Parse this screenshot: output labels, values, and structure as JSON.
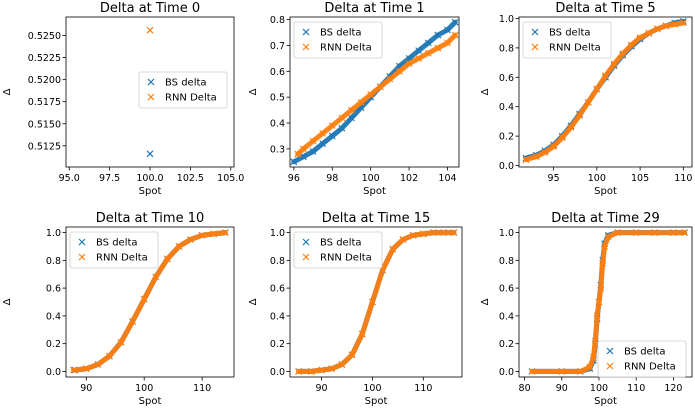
{
  "colors": {
    "bs": "#1f77b4",
    "rnn": "#ff7f0e"
  },
  "chart_data": [
    {
      "type": "scatter",
      "title": "Delta at Time 0",
      "xlabel": "Spot",
      "ylabel": "Δ",
      "xlim": [
        94.8,
        105.2
      ],
      "ylim": [
        0.5101,
        0.5271
      ],
      "xticks": [
        "95.0",
        "97.5",
        "100.0",
        "102.5",
        "105.0"
      ],
      "xtick_values": [
        95.0,
        97.5,
        100.0,
        102.5,
        105.0
      ],
      "yticks": [
        "0.5125",
        "0.5150",
        "0.5175",
        "0.5200",
        "0.5225",
        "0.5250"
      ],
      "ytick_values": [
        0.5125,
        0.515,
        0.5175,
        0.52,
        0.5225,
        0.525
      ],
      "legend": {
        "position": "center-right",
        "entries": [
          "BS delta",
          "RNN Delta"
        ]
      },
      "series": [
        {
          "name": "BS delta",
          "x": [
            100.0
          ],
          "y": [
            0.5116
          ]
        },
        {
          "name": "RNN Delta",
          "x": [
            100.0
          ],
          "y": [
            0.5256
          ]
        }
      ]
    },
    {
      "type": "scatter",
      "title": "Delta at Time 1",
      "xlabel": "Spot",
      "ylabel": "Δ",
      "xlim": [
        95.8,
        104.6
      ],
      "ylim": [
        0.23,
        0.81
      ],
      "xticks": [
        "96",
        "98",
        "100",
        "102",
        "104"
      ],
      "xtick_values": [
        96,
        98,
        100,
        102,
        104
      ],
      "yticks": [
        "0.3",
        "0.4",
        "0.5",
        "0.6",
        "0.7",
        "0.8"
      ],
      "ytick_values": [
        0.3,
        0.4,
        0.5,
        0.6,
        0.7,
        0.8
      ],
      "legend": {
        "position": "upper-left",
        "entries": [
          "BS delta",
          "RNN Delta"
        ]
      },
      "series": [
        {
          "name": "BS delta",
          "x": [
            96.0,
            96.5,
            97.0,
            97.5,
            98.0,
            98.5,
            99.0,
            99.5,
            100.0,
            100.5,
            101.0,
            101.5,
            102.0,
            102.5,
            103.0,
            103.5,
            104.0,
            104.4
          ],
          "y": [
            0.25,
            0.27,
            0.29,
            0.32,
            0.35,
            0.38,
            0.42,
            0.46,
            0.5,
            0.54,
            0.58,
            0.62,
            0.65,
            0.68,
            0.71,
            0.74,
            0.76,
            0.79
          ]
        },
        {
          "name": "RNN Delta",
          "x": [
            96.2,
            96.5,
            97.0,
            97.5,
            98.0,
            98.5,
            99.0,
            99.5,
            100.0,
            100.5,
            101.0,
            101.5,
            102.0,
            102.5,
            103.0,
            103.5,
            104.0,
            104.4
          ],
          "y": [
            0.28,
            0.3,
            0.33,
            0.36,
            0.39,
            0.42,
            0.45,
            0.48,
            0.51,
            0.54,
            0.57,
            0.6,
            0.63,
            0.65,
            0.67,
            0.69,
            0.71,
            0.74
          ]
        }
      ]
    },
    {
      "type": "scatter",
      "title": "Delta at Time 5",
      "xlabel": "Spot",
      "ylabel": "Δ",
      "xlim": [
        91.0,
        111.0
      ],
      "ylim": [
        -0.01,
        1.01
      ],
      "xticks": [
        "95",
        "100",
        "105",
        "110"
      ],
      "xtick_values": [
        95,
        100,
        105,
        110
      ],
      "yticks": [
        "0.0",
        "0.2",
        "0.4",
        "0.6",
        "0.8",
        "1.0"
      ],
      "ytick_values": [
        0.0,
        0.2,
        0.4,
        0.6,
        0.8,
        1.0
      ],
      "legend": {
        "position": "upper-left",
        "entries": [
          "BS delta",
          "RNN Delta"
        ]
      },
      "series": [
        {
          "name": "BS delta",
          "x": [
            91.8,
            93.0,
            94.0,
            95.0,
            96.0,
            97.0,
            98.0,
            99.0,
            100.0,
            101.0,
            102.0,
            103.0,
            104.0,
            105.0,
            106.0,
            107.0,
            108.0,
            109.0,
            110.0
          ],
          "y": [
            0.05,
            0.07,
            0.1,
            0.14,
            0.2,
            0.27,
            0.35,
            0.43,
            0.52,
            0.6,
            0.68,
            0.75,
            0.81,
            0.86,
            0.9,
            0.93,
            0.95,
            0.97,
            0.98
          ]
        },
        {
          "name": "RNN Delta",
          "x": [
            91.8,
            93.0,
            94.0,
            95.0,
            96.0,
            97.0,
            98.0,
            99.0,
            100.0,
            101.0,
            102.0,
            103.0,
            104.0,
            105.0,
            106.0,
            107.0,
            108.0,
            109.0,
            110.0
          ],
          "y": [
            0.04,
            0.06,
            0.09,
            0.13,
            0.19,
            0.26,
            0.34,
            0.43,
            0.52,
            0.61,
            0.69,
            0.76,
            0.82,
            0.87,
            0.9,
            0.93,
            0.95,
            0.96,
            0.97
          ]
        }
      ]
    },
    {
      "type": "scatter",
      "title": "Delta at Time 10",
      "xlabel": "Spot",
      "ylabel": "Δ",
      "xlim": [
        86.5,
        115.5
      ],
      "ylim": [
        -0.04,
        1.04
      ],
      "xticks": [
        "90",
        "100",
        "110"
      ],
      "xtick_values": [
        90,
        100,
        110
      ],
      "yticks": [
        "0.0",
        "0.2",
        "0.4",
        "0.6",
        "0.8",
        "1.0"
      ],
      "ytick_values": [
        0.0,
        0.2,
        0.4,
        0.6,
        0.8,
        1.0
      ],
      "legend": {
        "position": "upper-left",
        "entries": [
          "BS delta",
          "RNN Delta"
        ]
      },
      "series": [
        {
          "name": "BS delta",
          "x": [
            88.0,
            90.0,
            92.0,
            94.0,
            96.0,
            98.0,
            100.0,
            102.0,
            104.0,
            106.0,
            108.0,
            110.0,
            112.0,
            114.0
          ],
          "y": [
            0.01,
            0.02,
            0.05,
            0.11,
            0.21,
            0.36,
            0.52,
            0.68,
            0.81,
            0.9,
            0.95,
            0.98,
            0.99,
            1.0
          ]
        },
        {
          "name": "RNN Delta",
          "x": [
            87.8,
            90.0,
            92.0,
            94.0,
            96.0,
            98.0,
            100.0,
            102.0,
            104.0,
            106.0,
            108.0,
            110.0,
            112.0,
            114.0
          ],
          "y": [
            0.01,
            0.02,
            0.05,
            0.11,
            0.21,
            0.36,
            0.52,
            0.68,
            0.81,
            0.9,
            0.95,
            0.98,
            0.99,
            1.0
          ]
        }
      ]
    },
    {
      "type": "scatter",
      "title": "Delta at Time 15",
      "xlabel": "Spot",
      "ylabel": "Δ",
      "xlim": [
        83.8,
        117.6
      ],
      "ylim": [
        -0.04,
        1.04
      ],
      "xticks": [
        "90",
        "100",
        "110"
      ],
      "xtick_values": [
        90,
        100,
        110
      ],
      "yticks": [
        "0.0",
        "0.2",
        "0.4",
        "0.6",
        "0.8",
        "1.0"
      ],
      "ytick_values": [
        0.0,
        0.2,
        0.4,
        0.6,
        0.8,
        1.0
      ],
      "legend": {
        "position": "upper-left",
        "entries": [
          "BS delta",
          "RNN Delta"
        ]
      },
      "series": [
        {
          "name": "BS delta",
          "x": [
            85.5,
            88.0,
            90.0,
            92.0,
            94.0,
            96.0,
            98.0,
            100.0,
            102.0,
            104.0,
            106.0,
            108.0,
            110.0,
            112.0,
            114.0,
            116.0
          ],
          "y": [
            0.0,
            0.0,
            0.01,
            0.02,
            0.05,
            0.12,
            0.27,
            0.5,
            0.73,
            0.88,
            0.95,
            0.98,
            0.99,
            1.0,
            1.0,
            1.0
          ]
        },
        {
          "name": "RNN Delta",
          "x": [
            85.5,
            88.0,
            90.0,
            92.0,
            94.0,
            96.0,
            98.0,
            100.0,
            102.0,
            104.0,
            106.0,
            108.0,
            110.0,
            112.0,
            114.0,
            116.0
          ],
          "y": [
            0.0,
            0.0,
            0.01,
            0.02,
            0.05,
            0.12,
            0.27,
            0.5,
            0.73,
            0.88,
            0.95,
            0.98,
            0.99,
            1.0,
            1.0,
            1.0
          ]
        }
      ]
    },
    {
      "type": "scatter",
      "title": "Delta at Time 29",
      "xlabel": "Spot",
      "ylabel": "Δ",
      "xlim": [
        78.5,
        125.0
      ],
      "ylim": [
        -0.04,
        1.04
      ],
      "xticks": [
        "80",
        "90",
        "100",
        "110",
        "120"
      ],
      "xtick_values": [
        80,
        90,
        100,
        110,
        120
      ],
      "yticks": [
        "0.0",
        "0.2",
        "0.4",
        "0.6",
        "0.8",
        "1.0"
      ],
      "ytick_values": [
        0.0,
        0.2,
        0.4,
        0.6,
        0.8,
        1.0
      ],
      "legend": {
        "position": "lower-right",
        "entries": [
          "BS delta",
          "RNN Delta"
        ]
      },
      "series": [
        {
          "name": "BS delta",
          "x": [
            82.0,
            90.0,
            95.0,
            97.5,
            98.5,
            99.0,
            99.5,
            100.0,
            100.5,
            101.0,
            101.5,
            102.5,
            105.0,
            110.0,
            115.0,
            120.0,
            123.0
          ],
          "y": [
            0.0,
            0.0,
            0.0,
            0.02,
            0.08,
            0.2,
            0.38,
            0.5,
            0.62,
            0.8,
            0.92,
            0.98,
            1.0,
            1.0,
            1.0,
            1.0,
            1.0
          ]
        },
        {
          "name": "RNN Delta",
          "x": [
            82.0,
            90.0,
            95.0,
            97.5,
            98.5,
            99.0,
            99.5,
            100.0,
            100.5,
            101.0,
            101.5,
            102.5,
            105.0,
            110.0,
            115.0,
            120.0,
            123.0
          ],
          "y": [
            0.0,
            0.0,
            0.0,
            0.03,
            0.1,
            0.22,
            0.4,
            0.5,
            0.6,
            0.78,
            0.9,
            0.97,
            1.0,
            1.0,
            1.0,
            1.0,
            1.0
          ]
        }
      ]
    }
  ]
}
